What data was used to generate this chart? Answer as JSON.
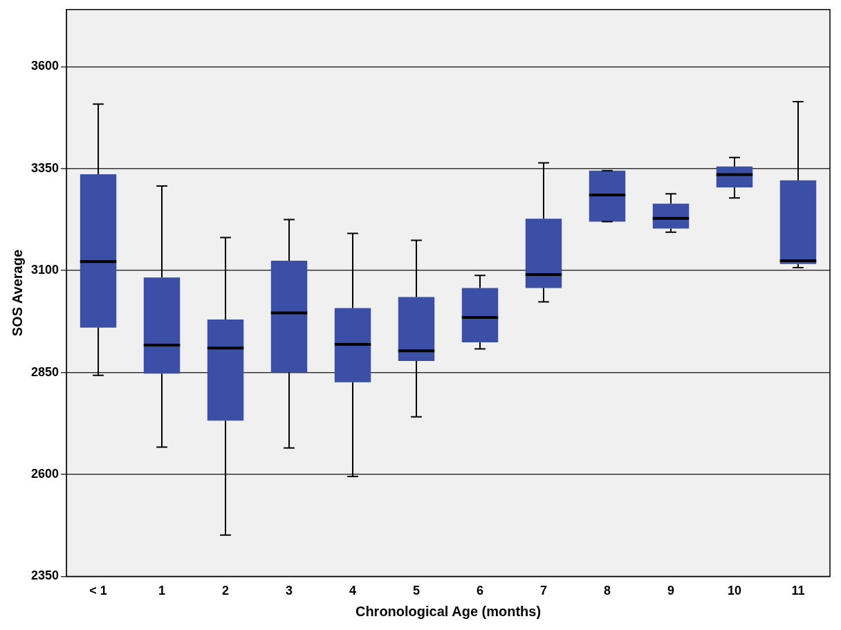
{
  "chart_data": {
    "type": "box",
    "xlabel": "Chronological Age (months)",
    "ylabel": "SOS Average",
    "categories": [
      "< 1",
      "1",
      "2",
      "3",
      "4",
      "5",
      "6",
      "7",
      "8",
      "9",
      "10",
      "11"
    ],
    "ylim": [
      2350,
      3740
    ],
    "yticks": [
      2350,
      2600,
      2850,
      3100,
      3350,
      3600
    ],
    "grid": "y",
    "color": "#3b4fa6",
    "boxes": [
      {
        "low": 2843,
        "q1": 2960,
        "median": 3122,
        "q3": 3336,
        "high": 3508
      },
      {
        "low": 2667,
        "q1": 2847,
        "median": 2917,
        "q3": 3083,
        "high": 3307
      },
      {
        "low": 2451,
        "q1": 2732,
        "median": 2910,
        "q3": 2980,
        "high": 3181
      },
      {
        "low": 2665,
        "q1": 2850,
        "median": 2996,
        "q3": 3124,
        "high": 3225
      },
      {
        "low": 2595,
        "q1": 2826,
        "median": 2919,
        "q3": 3008,
        "high": 3191
      },
      {
        "low": 2741,
        "q1": 2878,
        "median": 2903,
        "q3": 3035,
        "high": 3174
      },
      {
        "low": 2908,
        "q1": 2924,
        "median": 2985,
        "q3": 3057,
        "high": 3088
      },
      {
        "low": 3023,
        "q1": 3057,
        "median": 3090,
        "q3": 3227,
        "high": 3364
      },
      {
        "low": 3220,
        "q1": 3220,
        "median": 3285,
        "q3": 3345,
        "high": 3345
      },
      {
        "low": 3194,
        "q1": 3203,
        "median": 3228,
        "q3": 3264,
        "high": 3288
      },
      {
        "low": 3278,
        "q1": 3304,
        "median": 3335,
        "q3": 3355,
        "high": 3377
      },
      {
        "low": 3107,
        "q1": 3116,
        "median": 3124,
        "q3": 3321,
        "high": 3514
      }
    ]
  }
}
